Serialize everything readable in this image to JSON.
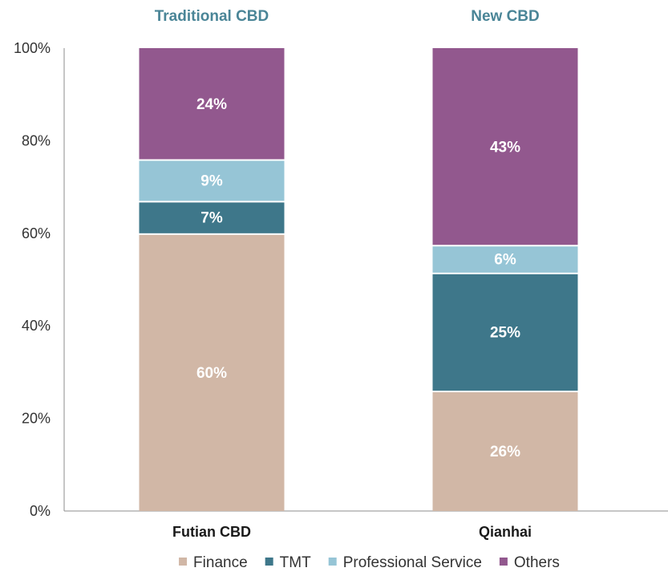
{
  "chart_data": {
    "type": "bar",
    "stacked": true,
    "group_titles": [
      "Traditional CBD",
      "New CBD"
    ],
    "categories": [
      "Futian CBD",
      "Qianhai"
    ],
    "series": [
      {
        "name": "Finance",
        "values": [
          60,
          26
        ],
        "labels": [
          "60%",
          "26%"
        ],
        "color": "#d1b7a6"
      },
      {
        "name": "TMT",
        "values": [
          7,
          25.5
        ],
        "labels": [
          "7%",
          "25%"
        ],
        "color": "#3e778a"
      },
      {
        "name": "Professional Service",
        "values": [
          9,
          6
        ],
        "labels": [
          "9%",
          "6%"
        ],
        "color": "#96c5d6"
      },
      {
        "name": "Others",
        "values": [
          24,
          42.5
        ],
        "labels": [
          "24%",
          "43%"
        ],
        "color": "#92588e"
      }
    ],
    "yticks": [
      "0%",
      "20%",
      "40%",
      "60%",
      "80%",
      "100%"
    ],
    "ylim": [
      0,
      100
    ],
    "legend": "bottom",
    "title_color": "#4a8597"
  }
}
